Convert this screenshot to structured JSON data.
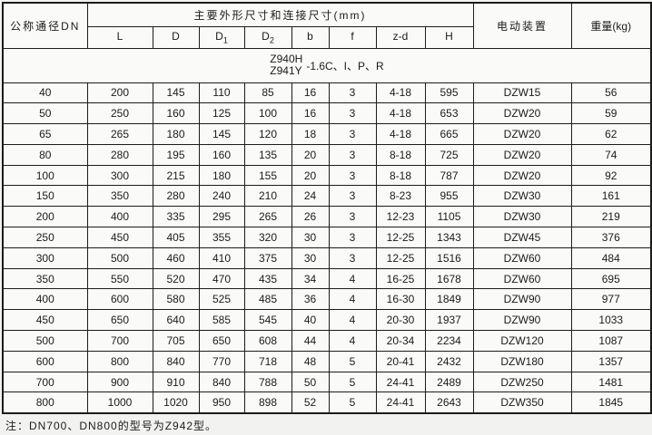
{
  "table": {
    "headers": {
      "dn": "公称通径DN",
      "main_group": "主要外形尺寸和连接尺寸(mm)",
      "actuator": "电动装置",
      "weight": "重量(kg)"
    },
    "sub_headers": [
      {
        "t": "L",
        "s": ""
      },
      {
        "t": "D",
        "s": ""
      },
      {
        "t": "D",
        "s": "1"
      },
      {
        "t": "D",
        "s": "2"
      },
      {
        "t": "b",
        "s": ""
      },
      {
        "t": "f",
        "s": ""
      },
      {
        "t": "z-d",
        "s": ""
      },
      {
        "t": "H",
        "s": ""
      }
    ],
    "model": {
      "line1": "Z940H",
      "line2": "Z941Y",
      "suffix": "-1.6C、I、P、R"
    },
    "rows": [
      [
        "40",
        "200",
        "145",
        "110",
        "85",
        "16",
        "3",
        "4-18",
        "595",
        "DZW15",
        "56"
      ],
      [
        "50",
        "250",
        "160",
        "125",
        "100",
        "16",
        "3",
        "4-18",
        "653",
        "DZW20",
        "59"
      ],
      [
        "65",
        "265",
        "180",
        "145",
        "120",
        "18",
        "3",
        "4-18",
        "665",
        "DZW20",
        "62"
      ],
      [
        "80",
        "280",
        "195",
        "160",
        "135",
        "20",
        "3",
        "8-18",
        "725",
        "DZW20",
        "74"
      ],
      [
        "100",
        "300",
        "215",
        "180",
        "155",
        "20",
        "3",
        "8-18",
        "787",
        "DZW20",
        "92"
      ],
      [
        "150",
        "350",
        "280",
        "240",
        "210",
        "24",
        "3",
        "8-23",
        "955",
        "DZW30",
        "161"
      ],
      [
        "200",
        "400",
        "335",
        "295",
        "265",
        "26",
        "3",
        "12-23",
        "1105",
        "DZW30",
        "219"
      ],
      [
        "250",
        "450",
        "405",
        "355",
        "320",
        "30",
        "3",
        "12-25",
        "1343",
        "DZW45",
        "376"
      ],
      [
        "300",
        "500",
        "460",
        "410",
        "375",
        "30",
        "3",
        "12-25",
        "1516",
        "DZW60",
        "484"
      ],
      [
        "350",
        "550",
        "520",
        "470",
        "435",
        "34",
        "4",
        "16-25",
        "1678",
        "DZW60",
        "695"
      ],
      [
        "400",
        "600",
        "580",
        "525",
        "485",
        "36",
        "4",
        "16-30",
        "1849",
        "DZW90",
        "977"
      ],
      [
        "450",
        "650",
        "640",
        "585",
        "545",
        "40",
        "4",
        "20-30",
        "1937",
        "DZW90",
        "1033"
      ],
      [
        "500",
        "700",
        "705",
        "650",
        "608",
        "44",
        "4",
        "20-34",
        "2234",
        "DZW120",
        "1087"
      ],
      [
        "600",
        "800",
        "840",
        "770",
        "718",
        "48",
        "5",
        "20-41",
        "2432",
        "DZW180",
        "1357"
      ],
      [
        "700",
        "900",
        "910",
        "840",
        "788",
        "50",
        "5",
        "24-41",
        "2489",
        "DZW250",
        "1481"
      ],
      [
        "800",
        "1000",
        "1020",
        "950",
        "898",
        "52",
        "5",
        "24-41",
        "2643",
        "DZW350",
        "1845"
      ]
    ],
    "note": "注：DN700、DN800的型号为Z942型。"
  }
}
